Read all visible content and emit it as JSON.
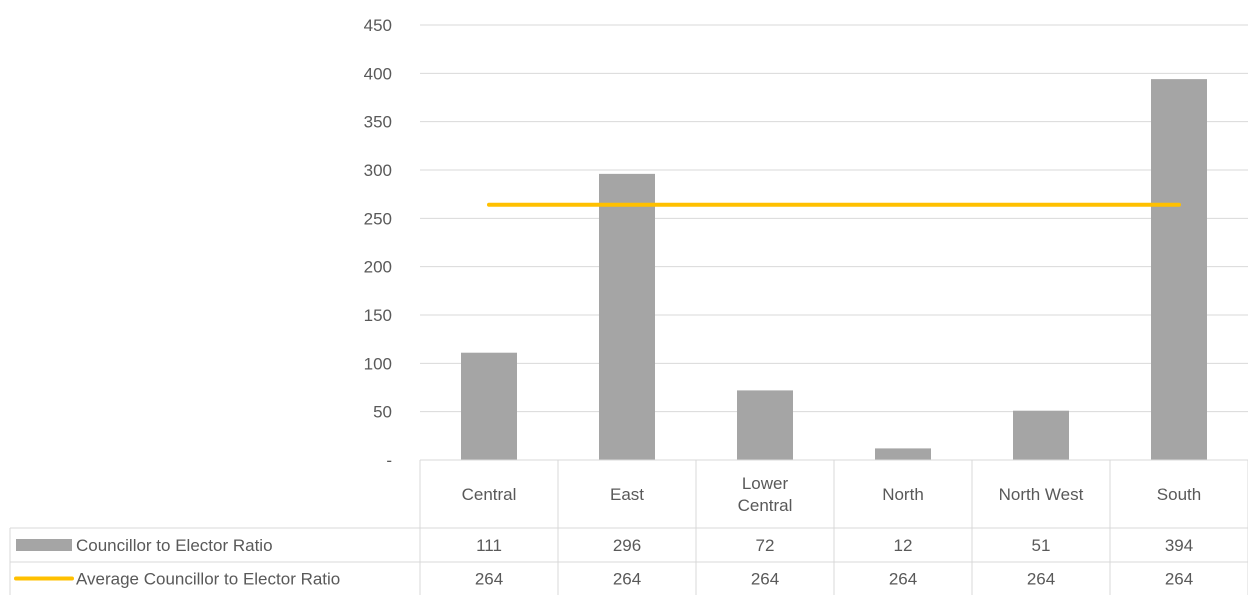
{
  "chart_data": {
    "type": "bar",
    "categories": [
      "Central",
      "East",
      "Lower Central",
      "North",
      "North West",
      "South"
    ],
    "series": [
      {
        "name": "Councillor to Elector Ratio",
        "type": "bar",
        "color": "#a5a5a5",
        "values": [
          111,
          296,
          72,
          12,
          51,
          394
        ]
      },
      {
        "name": "Average Councillor to Elector Ratio",
        "type": "line",
        "color": "#ffc000",
        "values": [
          264,
          264,
          264,
          264,
          264,
          264
        ]
      }
    ],
    "ylim": [
      0,
      450
    ],
    "yticks": [
      "-",
      "50",
      "100",
      "150",
      "200",
      "250",
      "300",
      "350",
      "400",
      "450"
    ],
    "grid": true,
    "legend": "data-table"
  }
}
